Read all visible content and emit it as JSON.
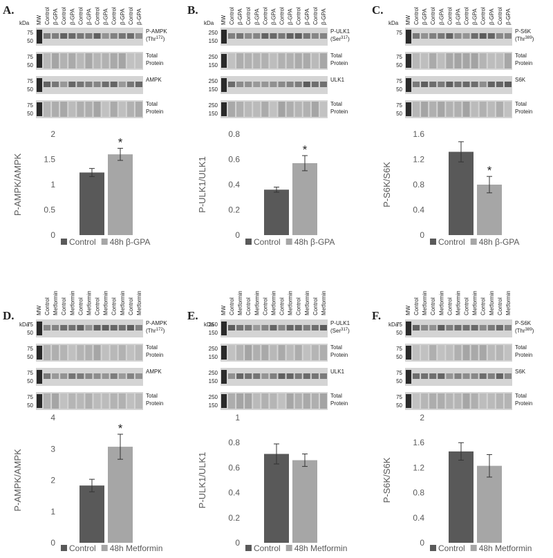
{
  "blots": [
    {
      "panel": "A.",
      "kda": "kDa",
      "mw_lane": "MW",
      "lanes": [
        "Control",
        "β-GPA",
        "Control",
        "β-GPA",
        "Control",
        "β-GPA",
        "Control",
        "β-GPA",
        "Control",
        "β-GPA",
        "Control",
        "β-GPA"
      ],
      "rows": [
        {
          "mw": [
            "75",
            "50"
          ],
          "label": [
            [
              "P-AMPK"
            ],
            [
              "(Thr",
              "172",
              ")"
            ]
          ]
        },
        {
          "mw": [
            "75",
            "50"
          ],
          "label": [
            [
              "Total"
            ],
            [
              "Protein"
            ]
          ]
        },
        {
          "mw": [
            "75",
            "50"
          ],
          "label": [
            [
              "AMPK"
            ]
          ]
        },
        {
          "mw": [
            "75",
            "50"
          ],
          "label": [
            [
              "Total"
            ],
            [
              "Protein"
            ]
          ]
        }
      ]
    },
    {
      "panel": "B.",
      "kda": "kDa",
      "mw_lane": "MW",
      "lanes": [
        "Control",
        "β-GPA",
        "Control",
        "β-GPA",
        "Control",
        "β-GPA",
        "Control",
        "β-GPA",
        "Control",
        "β-GPA",
        "Control",
        "β-GPA"
      ],
      "rows": [
        {
          "mw": [
            "250",
            "150"
          ],
          "label": [
            [
              "P-ULK1"
            ],
            [
              "(Ser",
              "317",
              ")"
            ]
          ]
        },
        {
          "mw": [
            "250",
            "150"
          ],
          "label": [
            [
              "Total"
            ],
            [
              "Protein"
            ]
          ]
        },
        {
          "mw": [
            "250",
            "150"
          ],
          "label": [
            [
              "ULK1"
            ]
          ]
        },
        {
          "mw": [
            "250",
            "150"
          ],
          "label": [
            [
              "Total"
            ],
            [
              "Protein"
            ]
          ]
        }
      ]
    },
    {
      "panel": "C.",
      "kda": "kDa",
      "mw_lane": "MW",
      "lanes": [
        "Control",
        "β-GPA",
        "Control",
        "β-GPA",
        "Control",
        "β-GPA",
        "Control",
        "β-GPA",
        "Control",
        "β-GPA",
        "Control",
        "β-GPA"
      ],
      "rows": [
        {
          "mw": [
            "75"
          ],
          "label": [
            [
              "P-S6K"
            ],
            [
              "(Thr",
              "389",
              ")"
            ]
          ]
        },
        {
          "mw": [
            "75",
            "50"
          ],
          "label": [
            [
              "Total"
            ],
            [
              "Protein"
            ]
          ]
        },
        {
          "mw": [
            "75",
            "50"
          ],
          "label": [
            [
              "S6K"
            ]
          ]
        },
        {
          "mw": [
            "75",
            "50"
          ],
          "label": [
            [
              "Total"
            ],
            [
              "Protein"
            ]
          ]
        }
      ]
    },
    {
      "panel": "D.",
      "kda": "kDa",
      "mw_lane": "MW",
      "lanes": [
        "Control",
        "Metformin",
        "Control",
        "Metformin",
        "Control",
        "Metformin",
        "Control",
        "Metformin",
        "Control",
        "Metformin",
        "Control",
        "Metformin"
      ],
      "rows": [
        {
          "mw": [
            "75",
            "50"
          ],
          "label": [
            [
              "P-AMPK"
            ],
            [
              "(Thr",
              "172",
              ")"
            ]
          ]
        },
        {
          "mw": [
            "75",
            "50"
          ],
          "label": [
            [
              "Total"
            ],
            [
              "Protein"
            ]
          ]
        },
        {
          "mw": [
            "75",
            "50"
          ],
          "label": [
            [
              "AMPK"
            ]
          ]
        },
        {
          "mw": [
            "75",
            "50"
          ],
          "label": [
            [
              "Total"
            ],
            [
              "Protein"
            ]
          ]
        }
      ]
    },
    {
      "panel": "E.",
      "kda": "kDa",
      "mw_lane": "MW",
      "lanes": [
        "Control",
        "Metformin",
        "Control",
        "Metformin",
        "Control",
        "Metformin",
        "Control",
        "Metformin",
        "Control",
        "Metformin",
        "Control",
        "Metformin"
      ],
      "rows": [
        {
          "mw": [
            "250",
            "150"
          ],
          "label": [
            [
              "P-ULK1"
            ],
            [
              "(Ser",
              "317",
              ")"
            ]
          ]
        },
        {
          "mw": [
            "250",
            "150"
          ],
          "label": [
            [
              "Total"
            ],
            [
              "Protein"
            ]
          ]
        },
        {
          "mw": [
            "250",
            "150"
          ],
          "label": [
            [
              "ULK1"
            ]
          ]
        },
        {
          "mw": [
            "250",
            "150"
          ],
          "label": [
            [
              "Total"
            ],
            [
              "Protein"
            ]
          ]
        }
      ]
    },
    {
      "panel": "F.",
      "kda": "kDa",
      "mw_lane": "MW",
      "lanes": [
        "Control",
        "Metformin",
        "Control",
        "Metformin",
        "Control",
        "Metformin",
        "Control",
        "Metformin",
        "Control",
        "Metformin",
        "Control",
        "Metformin"
      ],
      "rows": [
        {
          "mw": [
            "75",
            "50"
          ],
          "label": [
            [
              "P-S6K"
            ],
            [
              "(Thr",
              "389",
              ")"
            ]
          ]
        },
        {
          "mw": [
            "75",
            "50"
          ],
          "label": [
            [
              "Total"
            ],
            [
              "Protein"
            ]
          ]
        },
        {
          "mw": [
            "75",
            "50"
          ],
          "label": [
            [
              "S6K"
            ]
          ]
        },
        {
          "mw": [
            "75",
            "50"
          ],
          "label": [
            [
              "Total"
            ],
            [
              "Protein"
            ]
          ]
        }
      ]
    }
  ],
  "chart_data": [
    {
      "type": "bar",
      "y_label": "P-AMPK/AMPK",
      "categories": [
        "Control",
        "48h β-GPA"
      ],
      "values": [
        1.24,
        1.6
      ],
      "errors": [
        0.08,
        0.12
      ],
      "annotations": [
        null,
        "*"
      ],
      "colors": [
        "#595959",
        "#a6a6a6"
      ],
      "ylim": [
        0,
        2
      ],
      "yticks": [
        0,
        0.5,
        1,
        1.5,
        2
      ]
    },
    {
      "type": "bar",
      "y_label": "P-ULK1/ULK1",
      "categories": [
        "Control",
        "48h β-GPA"
      ],
      "values": [
        0.36,
        0.57
      ],
      "errors": [
        0.02,
        0.06
      ],
      "annotations": [
        null,
        "*"
      ],
      "colors": [
        "#595959",
        "#a6a6a6"
      ],
      "ylim": [
        0,
        0.8
      ],
      "yticks": [
        0,
        0.2,
        0.4,
        0.6,
        0.8
      ]
    },
    {
      "type": "bar",
      "y_label": "P-S6K/S6K",
      "categories": [
        "Control",
        "48h β-GPA"
      ],
      "values": [
        1.32,
        0.8
      ],
      "errors": [
        0.16,
        0.13
      ],
      "annotations": [
        null,
        "*"
      ],
      "colors": [
        "#595959",
        "#a6a6a6"
      ],
      "ylim": [
        0,
        1.6
      ],
      "yticks": [
        0,
        0.4,
        0.8,
        1.2,
        1.6
      ]
    },
    {
      "type": "bar",
      "y_label": "P-AMPK/AMPK",
      "categories": [
        "Control",
        "48h Metformin"
      ],
      "values": [
        1.83,
        3.07
      ],
      "errors": [
        0.2,
        0.4
      ],
      "annotations": [
        null,
        "*"
      ],
      "colors": [
        "#595959",
        "#a6a6a6"
      ],
      "ylim": [
        0,
        4
      ],
      "yticks": [
        0,
        1,
        2,
        3,
        4
      ]
    },
    {
      "type": "bar",
      "y_label": "P-ULK1/ULK1",
      "categories": [
        "Control",
        "48h Metformin"
      ],
      "values": [
        0.71,
        0.66
      ],
      "errors": [
        0.08,
        0.05
      ],
      "annotations": [
        null,
        null
      ],
      "colors": [
        "#595959",
        "#a6a6a6"
      ],
      "ylim": [
        0,
        1
      ],
      "yticks": [
        0,
        0.2,
        0.4,
        0.6,
        0.8,
        1
      ]
    },
    {
      "type": "bar",
      "y_label": "P-S6K/S6K",
      "categories": [
        "Control",
        "48h Metformin"
      ],
      "values": [
        1.46,
        1.23
      ],
      "errors": [
        0.14,
        0.18
      ],
      "annotations": [
        null,
        null
      ],
      "colors": [
        "#595959",
        "#a6a6a6"
      ],
      "ylim": [
        0,
        2
      ],
      "yticks": [
        0,
        0.4,
        0.8,
        1.2,
        1.6,
        2
      ]
    }
  ]
}
